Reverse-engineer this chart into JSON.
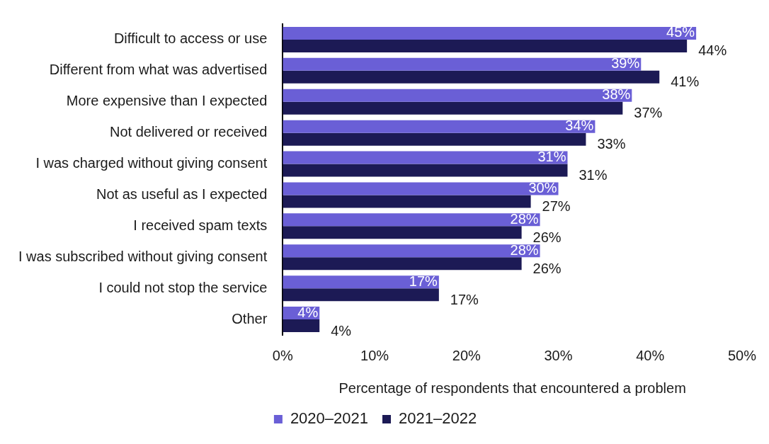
{
  "chart_data": {
    "type": "bar",
    "orientation": "horizontal",
    "categories": [
      "Difficult to access or use",
      "Different from what was advertised",
      "More expensive than I expected",
      "Not delivered or received",
      "I was charged without giving consent",
      "Not as useful as I expected",
      "I received spam texts",
      "I was subscribed without giving consent",
      "I could not stop the service",
      "Other"
    ],
    "series": [
      {
        "name": "2020–2021",
        "color": "#6a5fd6",
        "values": [
          45,
          39,
          38,
          34,
          31,
          30,
          28,
          28,
          17,
          4
        ],
        "value_labels": [
          "45%",
          "39%",
          "38%",
          "34%",
          "31%",
          "30%",
          "28%",
          "28%",
          "17%",
          "4%"
        ]
      },
      {
        "name": "2021–2022",
        "color": "#1c1a55",
        "values": [
          44,
          41,
          37,
          33,
          31,
          27,
          26,
          26,
          17,
          4
        ],
        "value_labels": [
          "44%",
          "41%",
          "37%",
          "33%",
          "31%",
          "27%",
          "26%",
          "26%",
          "17%",
          "4%"
        ]
      }
    ],
    "xlabel": "Percentage of respondents that encountered a problem",
    "xlim": [
      0,
      50
    ],
    "xticks": [
      {
        "value": 0,
        "label": "0%"
      },
      {
        "value": 10,
        "label": "10%"
      },
      {
        "value": 20,
        "label": "20%"
      },
      {
        "value": 30,
        "label": "30%"
      },
      {
        "value": 40,
        "label": "40%"
      },
      {
        "value": 50,
        "label": "50%"
      }
    ],
    "grid": false,
    "legend": "bottom"
  }
}
